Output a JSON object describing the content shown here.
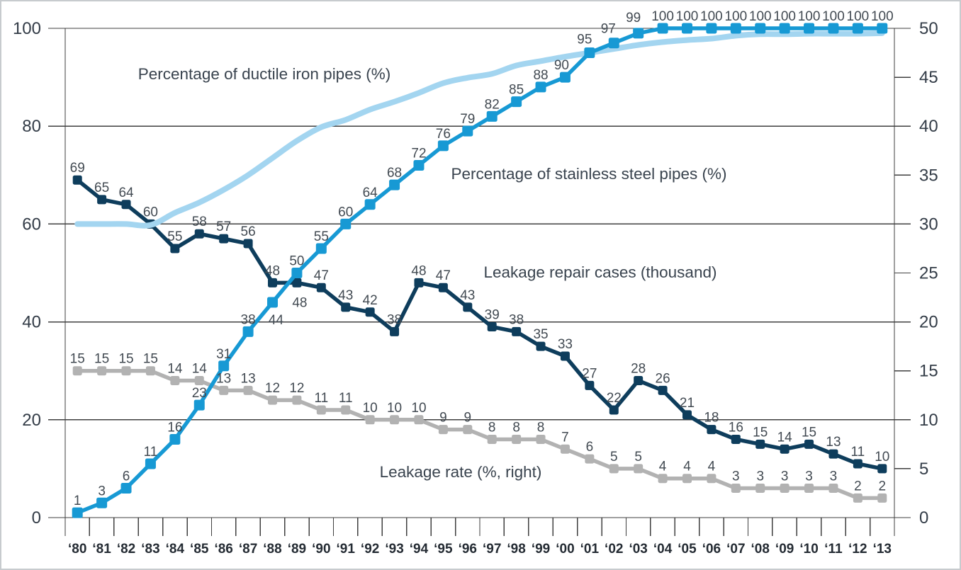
{
  "chart_data": {
    "type": "line",
    "x_categories": [
      "‘80",
      "‘81",
      "‘82",
      "‘83",
      "‘84",
      "‘85",
      "‘86",
      "‘87",
      "‘88",
      "‘89",
      "‘90",
      "‘91",
      "‘92",
      "‘93",
      "‘94",
      "‘95",
      "‘96",
      "‘97",
      "‘98",
      "‘99",
      "‘00",
      "‘01",
      "‘02",
      "‘03",
      "‘04",
      "‘05",
      "‘06",
      "‘07",
      "‘08",
      "‘09",
      "‘10",
      "‘11",
      "‘12",
      "‘13"
    ],
    "axes": {
      "left": {
        "min": 0,
        "max": 100,
        "ticks": [
          0,
          20,
          40,
          60,
          80,
          100
        ]
      },
      "right": {
        "min": 0,
        "max": 50,
        "ticks": [
          0,
          5,
          10,
          15,
          20,
          25,
          30,
          35,
          40,
          45,
          50
        ]
      }
    },
    "grid": "horizontal-major",
    "legend_position": "inline-annotations",
    "series": [
      {
        "id": "ductile",
        "name": "Percentage of ductile iron pipes (%)",
        "axis": "left",
        "color": "#a3d5f0",
        "marker": false,
        "point_labels": false,
        "smooth": true,
        "values": [
          60,
          60,
          60,
          59.8,
          62.3,
          64.4,
          67,
          70,
          73.5,
          77,
          79.8,
          81.3,
          83.4,
          85,
          86.8,
          88.8,
          89.9,
          90.7,
          92.4,
          93.3,
          94.2,
          95,
          95.8,
          96.6,
          97.2,
          97.6,
          97.9,
          98.5,
          98.8,
          98.8,
          98.9,
          98.9,
          98.9,
          99
        ]
      },
      {
        "id": "repair",
        "name": "Leakage repair cases (thousand)",
        "axis": "left",
        "color": "#0e3d5c",
        "marker": true,
        "point_labels": true,
        "smooth": false,
        "values": [
          69,
          65,
          64,
          60,
          55,
          58,
          57,
          56,
          48,
          48,
          47,
          43,
          42,
          38,
          48,
          47,
          43,
          39,
          38,
          35,
          33,
          27,
          22,
          28,
          26,
          21,
          18,
          16,
          15,
          14,
          15,
          13,
          11,
          10
        ]
      },
      {
        "id": "rate",
        "name": "Leakage rate (%, right)",
        "axis": "right",
        "color": "#b2b2b2",
        "marker": true,
        "point_labels": true,
        "smooth": false,
        "values": [
          15,
          15,
          15,
          15,
          14,
          14,
          13,
          13,
          12,
          12,
          11,
          11,
          10,
          10,
          10,
          9,
          9,
          8,
          8,
          8,
          7,
          6,
          5,
          5,
          4,
          4,
          4,
          3,
          3,
          3,
          3,
          3,
          2,
          2
        ]
      },
      {
        "id": "stainless",
        "name": "Percentage of stainless steel pipes (%)",
        "axis": "left",
        "color": "#1799d4",
        "marker": true,
        "point_labels": true,
        "smooth": false,
        "values": [
          1,
          3,
          6,
          11,
          16,
          23,
          31,
          38,
          44,
          50,
          55,
          60,
          64,
          68,
          72,
          76,
          79,
          82,
          85,
          88,
          90,
          95,
          97,
          99,
          100,
          100,
          100,
          100,
          100,
          100,
          100,
          100,
          100,
          100
        ]
      }
    ],
    "colors": {
      "grid": "#3f3f3f",
      "axis_text": "#333c47",
      "x_axis_text": "#242b33",
      "data_label_text": "#424a52",
      "series_label_text": "#39434e"
    }
  }
}
